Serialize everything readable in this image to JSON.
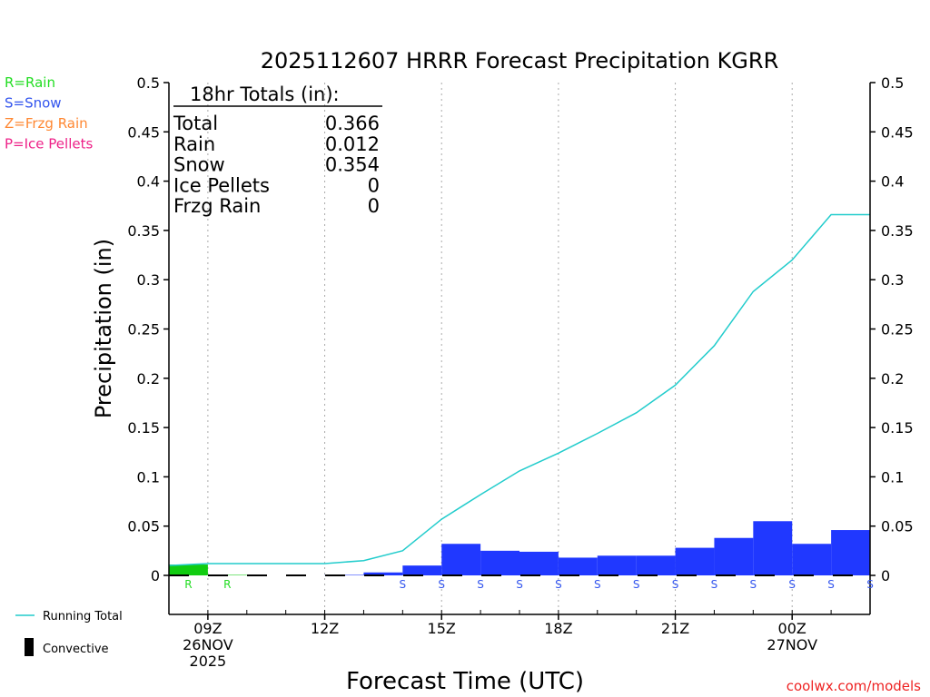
{
  "chart_data": {
    "type": "bar+line",
    "title": "2025112607 HRRR Forecast Precipitation KGRR",
    "xlabel": "Forecast Time (UTC)",
    "ylabel": "Precipitation (in)",
    "ylim": [
      0,
      0.5
    ],
    "xlim_hours_after_08Z": [
      0,
      18
    ],
    "y_ticks": [
      "0",
      "0.05",
      "0.1",
      "0.15",
      "0.2",
      "0.25",
      "0.3",
      "0.35",
      "0.4",
      "0.45",
      "0.5"
    ],
    "x_ticks": [
      {
        "hour": 1,
        "lines": [
          "09Z",
          "26NOV",
          "2025"
        ]
      },
      {
        "hour": 4,
        "lines": [
          "12Z"
        ]
      },
      {
        "hour": 7,
        "lines": [
          "15Z"
        ]
      },
      {
        "hour": 10,
        "lines": [
          "18Z"
        ]
      },
      {
        "hour": 13,
        "lines": [
          "21Z"
        ]
      },
      {
        "hour": 16,
        "lines": [
          "00Z",
          "27NOV"
        ]
      }
    ],
    "legend": [
      {
        "text": "R=Rain",
        "color": "#22dd22"
      },
      {
        "text": "S=Snow",
        "color": "#3355ee"
      },
      {
        "text": "Z=Frzg Rain",
        "color": "#ff8833"
      },
      {
        "text": "P=Ice Pellets",
        "color": "#ee2288"
      }
    ],
    "bottom_legend": {
      "running_total": "Running Total",
      "convective": "Convective"
    },
    "totals_box": {
      "header": "18hr Totals (in):",
      "rows": [
        {
          "label": "Total",
          "value": "0.366"
        },
        {
          "label": "Rain",
          "value": "0.012"
        },
        {
          "label": "Snow",
          "value": "0.354"
        },
        {
          "label": "Ice Pellets",
          "value": "0"
        },
        {
          "label": "Frzg Rain",
          "value": "0"
        }
      ]
    },
    "hourly_bars": [
      {
        "hour": 0,
        "value": 0.011,
        "type": "rain"
      },
      {
        "hour": 1,
        "value": 0.0005,
        "type": "rain"
      },
      {
        "hour": 2,
        "value": 0,
        "type": "none"
      },
      {
        "hour": 3,
        "value": 0,
        "type": "none"
      },
      {
        "hour": 4,
        "value": 0.0005,
        "type": "snow"
      },
      {
        "hour": 5,
        "value": 0.003,
        "type": "snow"
      },
      {
        "hour": 6,
        "value": 0.01,
        "type": "snow"
      },
      {
        "hour": 7,
        "value": 0.032,
        "type": "snow"
      },
      {
        "hour": 8,
        "value": 0.025,
        "type": "snow"
      },
      {
        "hour": 9,
        "value": 0.024,
        "type": "snow"
      },
      {
        "hour": 10,
        "value": 0.018,
        "type": "snow"
      },
      {
        "hour": 11,
        "value": 0.02,
        "type": "snow"
      },
      {
        "hour": 12,
        "value": 0.02,
        "type": "snow"
      },
      {
        "hour": 13,
        "value": 0.028,
        "type": "snow"
      },
      {
        "hour": 14,
        "value": 0.038,
        "type": "snow"
      },
      {
        "hour": 15,
        "value": 0.055,
        "type": "snow"
      },
      {
        "hour": 16,
        "value": 0.032,
        "type": "snow"
      },
      {
        "hour": 17,
        "value": 0.046,
        "type": "snow"
      }
    ],
    "running_total": {
      "x_hours": [
        0,
        1,
        2,
        3,
        4,
        5,
        6,
        7,
        8,
        9,
        10,
        11,
        12,
        13,
        14,
        15,
        16,
        17,
        18
      ],
      "values": [
        0.01,
        0.012,
        0.012,
        0.012,
        0.012,
        0.015,
        0.025,
        0.057,
        0.082,
        0.106,
        0.124,
        0.144,
        0.165,
        0.193,
        0.233,
        0.288,
        0.32,
        0.366,
        0.366
      ]
    },
    "ptype_markers": [
      {
        "hour": 0.5,
        "letter": "R",
        "color": "#22dd22"
      },
      {
        "hour": 1.5,
        "letter": "R",
        "color": "#22dd22"
      },
      {
        "hour": 6,
        "letter": "S",
        "color": "#3355ee"
      },
      {
        "hour": 7,
        "letter": "S",
        "color": "#3355ee"
      },
      {
        "hour": 8,
        "letter": "S",
        "color": "#3355ee"
      },
      {
        "hour": 9,
        "letter": "S",
        "color": "#3355ee"
      },
      {
        "hour": 10,
        "letter": "S",
        "color": "#3355ee"
      },
      {
        "hour": 11,
        "letter": "S",
        "color": "#3355ee"
      },
      {
        "hour": 12,
        "letter": "S",
        "color": "#3355ee"
      },
      {
        "hour": 13,
        "letter": "S",
        "color": "#3355ee"
      },
      {
        "hour": 14,
        "letter": "S",
        "color": "#3355ee"
      },
      {
        "hour": 15,
        "letter": "S",
        "color": "#3355ee"
      },
      {
        "hour": 16,
        "letter": "S",
        "color": "#3355ee"
      },
      {
        "hour": 17,
        "letter": "S",
        "color": "#3355ee"
      },
      {
        "hour": 18,
        "letter": "S",
        "color": "#3355ee"
      }
    ],
    "colors": {
      "rain": "#11cc11",
      "snow": "#2038ff",
      "running_total": "#22cccc",
      "axes": "#000000",
      "credit": "#ee2222"
    },
    "credit": "coolwx.com/models"
  }
}
